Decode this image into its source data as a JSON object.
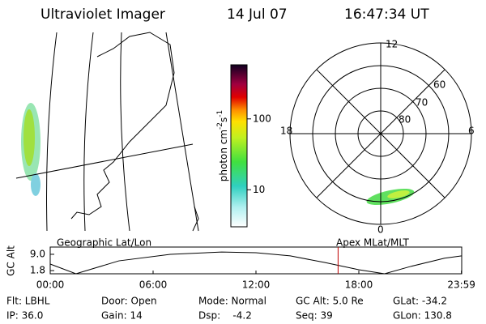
{
  "header": {
    "instrument": "Ultraviolet Imager",
    "date": "14 Jul 07",
    "time": "16:47:34 UT"
  },
  "colorbar": {
    "label": [
      "photon cm",
      "-2",
      "s",
      "-1"
    ],
    "lim": [
      3,
      580
    ],
    "ticks": [
      10,
      100
    ],
    "log": true
  },
  "polar": {
    "hour_labels": [
      "12",
      "6",
      "0",
      "18"
    ],
    "lat_labels": [
      "60",
      "70",
      "80"
    ]
  },
  "chart_data": {
    "type": "line",
    "title_left": "Geographic Lat/Lon",
    "title_right": "Apex MLat/MLT",
    "ylabel": "GC Alt",
    "x": [
      0,
      1.5,
      4,
      7,
      10,
      12,
      14,
      16,
      18,
      19.5,
      21,
      23,
      24
    ],
    "series": [
      {
        "name": "GC Alt",
        "color": "#000000",
        "values": [
          4.7,
          0.4,
          6.1,
          9.0,
          10.0,
          9.7,
          8.3,
          5.4,
          2.2,
          0.4,
          3.6,
          7.3,
          8.3
        ]
      }
    ],
    "xlim": [
      0,
      24
    ],
    "ylim": [
      0.4,
      12.2
    ],
    "xticks": [
      {
        "value": 0,
        "label": "00:00"
      },
      {
        "value": 6,
        "label": "06:00"
      },
      {
        "value": 12,
        "label": "12:00"
      },
      {
        "value": 18,
        "label": "18:00"
      },
      {
        "value": 23.983,
        "label": "23:59"
      }
    ],
    "yticks": [
      1.8,
      {
        "value": 9.0,
        "label": "9.0"
      }
    ],
    "current_time": 16.79,
    "current_color": "#c00000"
  },
  "footer": {
    "rows": [
      [
        "Flt: LBHL",
        "Door: Open",
        "Mode: Normal",
        "GC Alt: 5.0 Re",
        "GLat: -34.2"
      ],
      [
        "IP: 36.0",
        "Gain: 14",
        "Dsp:    -4.2",
        "Seq: 39",
        "GLon: 130.8"
      ]
    ]
  }
}
